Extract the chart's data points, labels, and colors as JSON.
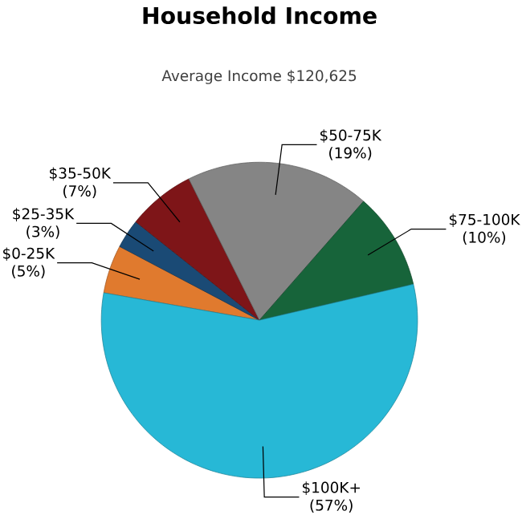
{
  "chart_data": {
    "type": "pie",
    "title": "Household Income",
    "subtitle": "Average Income  $120,625",
    "categories": [
      "$0-25K",
      "$25-35K",
      "$35-50K",
      "$50-75K",
      "$75-100K",
      "$100K+"
    ],
    "values": [
      5,
      3,
      7,
      19,
      10,
      57
    ],
    "value_labels": [
      "(5%)",
      "(3%)",
      "(7%)",
      "(19%)",
      "(10%)",
      "(57%)"
    ],
    "colors": [
      "#e07a2e",
      "#1a4a75",
      "#7e1518",
      "#858585",
      "#17643a",
      "#27b8d6"
    ]
  }
}
